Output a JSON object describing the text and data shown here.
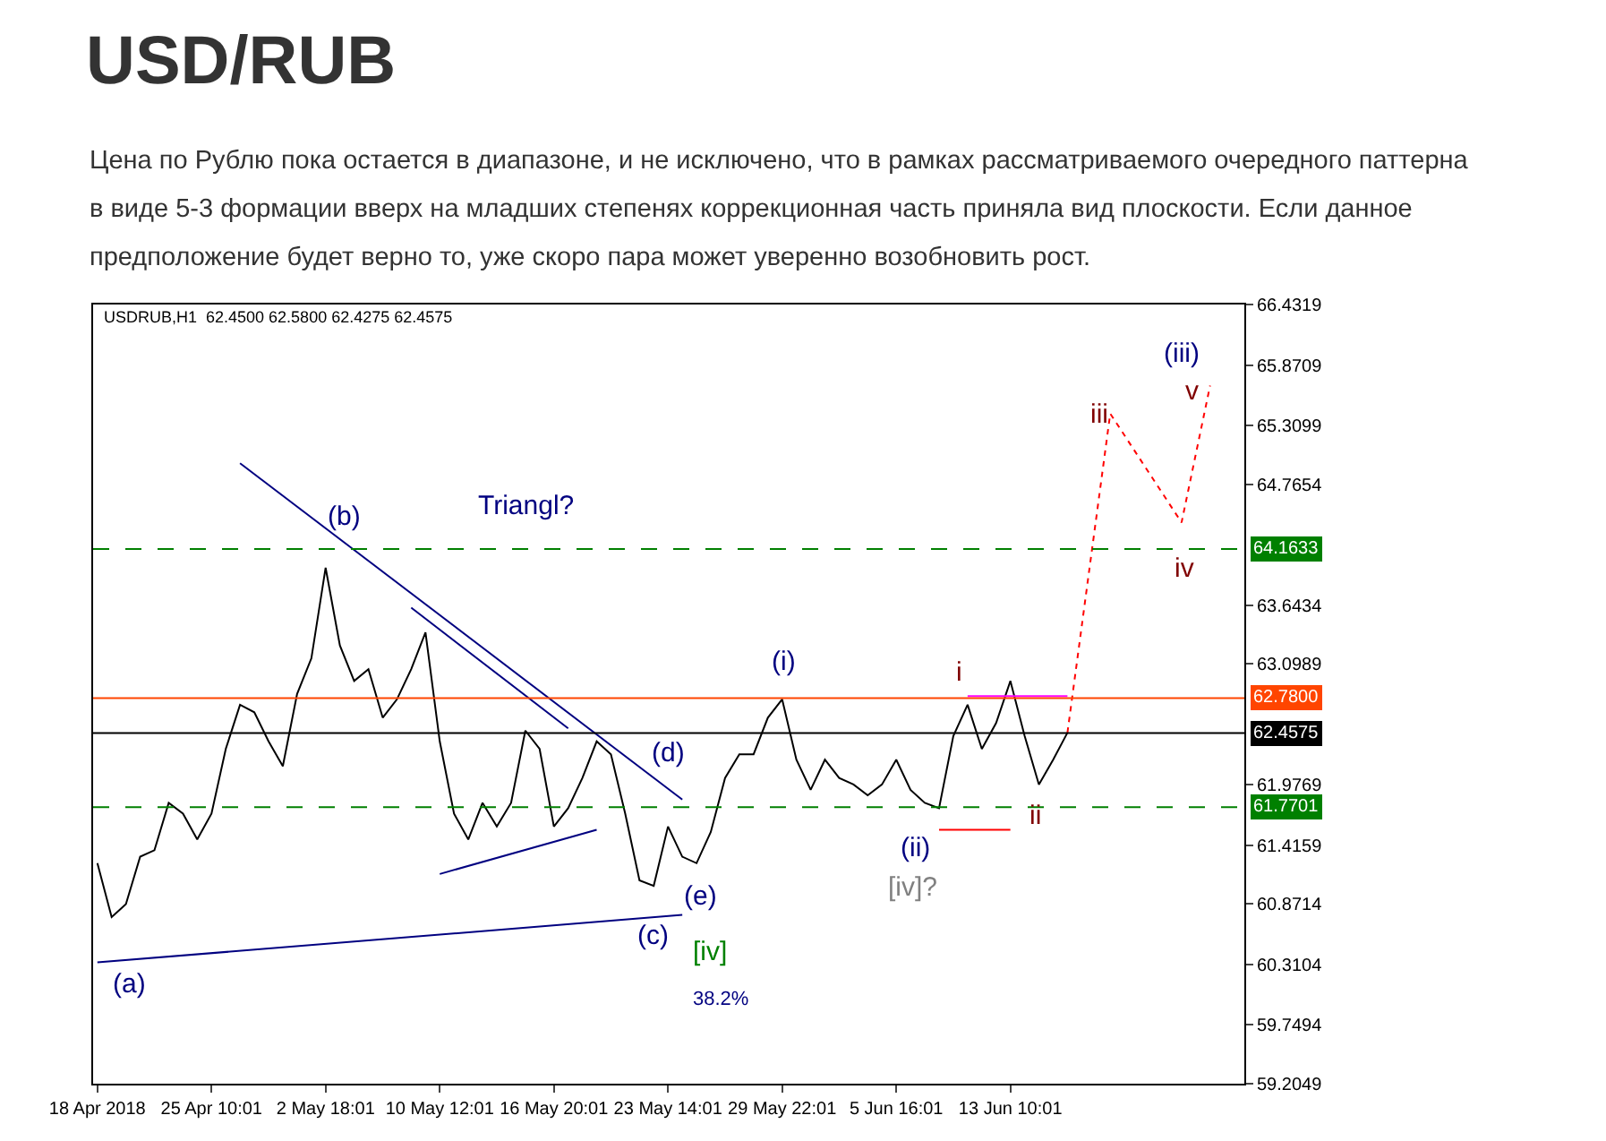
{
  "chart_data": {
    "type": "line",
    "title": "USD/RUB",
    "subtitle": "Цена по Рублю пока остается в диапазоне, и не исключено, что в рамках рассматриваемого очередного паттерна\nв виде 5-3 формации вверх на младших степенях коррекционная часть приняла вид плоскости. Если данное\nпредположение будет верно то, уже скоро пара может уверенно возобновить рост.",
    "categories": [
      "18 Apr 2018",
      null,
      null,
      null,
      null,
      null,
      null,
      null,
      "25 Apr 10:01",
      null,
      null,
      null,
      null,
      null,
      null,
      null,
      "2 May 18:01",
      null,
      null,
      null,
      null,
      null,
      null,
      null,
      "10 May 12:01",
      null,
      null,
      null,
      null,
      null,
      null,
      null,
      "16 May 20:01",
      null,
      null,
      null,
      null,
      null,
      null,
      null,
      "23 May 14:01",
      null,
      null,
      null,
      null,
      null,
      null,
      null,
      "29 May 22:01",
      null,
      null,
      null,
      null,
      null,
      null,
      null,
      "5 Jun 16:01",
      null,
      null,
      null,
      null,
      null,
      null,
      null,
      "13 Jun 10:01",
      null,
      null,
      null,
      null,
      null,
      null,
      null,
      null,
      null,
      null,
      null,
      null,
      null,
      null,
      null,
      null
    ],
    "series": [
      {
        "color": "#000000",
        "values": [
          61.25,
          60.75,
          60.87,
          61.31,
          61.37,
          61.81,
          61.71,
          61.47,
          61.71,
          62.31,
          62.72,
          62.65,
          62.38,
          62.15,
          62.82,
          63.15,
          63.99,
          63.27,
          62.94,
          63.05,
          62.6,
          62.77,
          63.05,
          63.39,
          62.38,
          61.71,
          61.47,
          61.81,
          61.59,
          61.81,
          62.48,
          62.31,
          61.59,
          61.76,
          62.04,
          62.38,
          62.26,
          61.71,
          61.09,
          61.04,
          61.59,
          61.31,
          61.25,
          61.54,
          62.04,
          62.26,
          62.26,
          62.6,
          62.77,
          62.21,
          61.93,
          62.21,
          62.04,
          61.98,
          61.88,
          61.98,
          62.21,
          61.93,
          61.81,
          61.76,
          62.43,
          62.72,
          62.31,
          62.55,
          62.94,
          62.43,
          61.98,
          62.21,
          62.46,
          null,
          null,
          null,
          null,
          null,
          null,
          null,
          null,
          null,
          null,
          null,
          null
        ]
      },
      {
        "color": "#ff0000",
        "line_style": "dotted",
        "values": [
          null,
          null,
          null,
          null,
          null,
          null,
          null,
          null,
          null,
          null,
          null,
          null,
          null,
          null,
          null,
          null,
          null,
          null,
          null,
          null,
          null,
          null,
          null,
          null,
          null,
          null,
          null,
          null,
          null,
          null,
          null,
          null,
          null,
          null,
          null,
          null,
          null,
          null,
          null,
          null,
          null,
          null,
          null,
          null,
          null,
          null,
          null,
          null,
          null,
          null,
          null,
          null,
          null,
          null,
          null,
          null,
          null,
          null,
          null,
          null,
          null,
          null,
          null,
          null,
          null,
          null,
          null,
          null,
          62.46,
          null,
          null,
          65.42,
          null,
          null,
          null,
          null,
          64.41,
          null,
          65.68,
          null,
          null
        ]
      },
      {
        "color": "#000080",
        "values": [
          null,
          null,
          null,
          null,
          null,
          null,
          null,
          null,
          null,
          null,
          64.96,
          null,
          null,
          null,
          null,
          null,
          null,
          null,
          null,
          null,
          null,
          null,
          null,
          null,
          null,
          null,
          null,
          null,
          null,
          null,
          null,
          null,
          null,
          null,
          null,
          null,
          null,
          null,
          null,
          null,
          null,
          61.84,
          null,
          null,
          null,
          null,
          null,
          null,
          null,
          null,
          null,
          null,
          null,
          null,
          null,
          null,
          null,
          null,
          null,
          null,
          null,
          null,
          null,
          null,
          null,
          null,
          null,
          null,
          null,
          null,
          null,
          null,
          null,
          null,
          null,
          null,
          null,
          null,
          null,
          null,
          null
        ]
      },
      {
        "color": "#000080",
        "values": [
          null,
          null,
          null,
          null,
          null,
          null,
          null,
          null,
          null,
          null,
          null,
          null,
          null,
          null,
          null,
          null,
          null,
          null,
          null,
          null,
          null,
          null,
          63.62,
          null,
          null,
          null,
          null,
          null,
          null,
          null,
          null,
          null,
          null,
          62.5,
          null,
          null,
          null,
          null,
          null,
          null,
          null,
          null,
          null,
          null,
          null,
          null,
          null,
          null,
          null,
          null,
          null,
          null,
          null,
          null,
          null,
          null,
          null,
          null,
          null,
          null,
          null,
          null,
          null,
          null,
          null,
          null,
          null,
          null,
          null,
          null,
          null,
          null,
          null,
          null,
          null,
          null,
          null,
          null,
          null,
          null,
          null
        ]
      },
      {
        "color": "#000080",
        "values": [
          null,
          null,
          null,
          null,
          null,
          null,
          null,
          null,
          null,
          null,
          null,
          null,
          null,
          null,
          null,
          null,
          null,
          null,
          null,
          null,
          null,
          null,
          null,
          null,
          61.15,
          null,
          null,
          null,
          null,
          null,
          null,
          null,
          null,
          null,
          null,
          61.56,
          null,
          null,
          null,
          null,
          null,
          null,
          null,
          null,
          null,
          null,
          null,
          null,
          null,
          null,
          null,
          null,
          null,
          null,
          null,
          null,
          null,
          null,
          null,
          null,
          null,
          null,
          null,
          null,
          null,
          null,
          null,
          null,
          null,
          null,
          null,
          null,
          null,
          null,
          null,
          null,
          null,
          null,
          null,
          null,
          null
        ]
      },
      {
        "color": "#000080",
        "values": [
          60.33,
          null,
          null,
          null,
          null,
          null,
          null,
          null,
          null,
          null,
          null,
          null,
          null,
          null,
          null,
          null,
          null,
          null,
          null,
          null,
          null,
          null,
          null,
          null,
          null,
          null,
          null,
          null,
          null,
          null,
          null,
          null,
          null,
          null,
          null,
          null,
          null,
          null,
          null,
          null,
          null,
          60.77,
          null,
          null,
          null,
          null,
          null,
          null,
          null,
          null,
          null,
          null,
          null,
          null,
          null,
          null,
          null,
          null,
          null,
          null,
          null,
          null,
          null,
          null,
          null,
          null,
          null,
          null,
          null,
          null,
          null,
          null,
          null,
          null,
          null,
          null,
          null,
          null,
          null,
          null,
          null
        ]
      },
      {
        "color": "#ff0000",
        "values": [
          null,
          null,
          null,
          null,
          null,
          null,
          null,
          null,
          null,
          null,
          null,
          null,
          null,
          null,
          null,
          null,
          null,
          null,
          null,
          null,
          null,
          null,
          null,
          null,
          null,
          null,
          null,
          null,
          null,
          null,
          null,
          null,
          null,
          null,
          null,
          null,
          null,
          null,
          null,
          null,
          null,
          null,
          null,
          null,
          null,
          null,
          null,
          null,
          null,
          null,
          null,
          null,
          null,
          null,
          null,
          null,
          null,
          null,
          null,
          61.56,
          null,
          null,
          null,
          null,
          61.56,
          null,
          null,
          null,
          null,
          null,
          null,
          null,
          null,
          null,
          null,
          null,
          null,
          null,
          null,
          null,
          null
        ]
      },
      {
        "color": "#ff00ff",
        "values": [
          null,
          null,
          null,
          null,
          null,
          null,
          null,
          null,
          null,
          null,
          null,
          null,
          null,
          null,
          null,
          null,
          null,
          null,
          null,
          null,
          null,
          null,
          null,
          null,
          null,
          null,
          null,
          null,
          null,
          null,
          null,
          null,
          null,
          null,
          null,
          null,
          null,
          null,
          null,
          null,
          null,
          null,
          null,
          null,
          null,
          null,
          null,
          null,
          null,
          null,
          null,
          null,
          null,
          null,
          null,
          null,
          null,
          null,
          null,
          null,
          null,
          62.8,
          null,
          null,
          null,
          null,
          null,
          null,
          62.8,
          null,
          null,
          null,
          null,
          null,
          null,
          null,
          null,
          null,
          null,
          null,
          null
        ]
      }
    ],
    "ylim": [
      59.2049,
      66.4319
    ],
    "yticks": [
      66.4319,
      65.8709,
      65.3099,
      64.7654,
      63.6434,
      63.0989,
      61.9769,
      61.4159,
      60.8714,
      60.3104,
      59.7494,
      59.2049
    ],
    "ref_lines": [
      {
        "axis": "y",
        "value": 64.1633,
        "label": "64.1633",
        "color": "#008000",
        "line_style": "dashed"
      },
      {
        "axis": "y",
        "value": 61.7701,
        "label": "61.7701",
        "color": "#008000",
        "line_style": "dashed"
      },
      {
        "axis": "y",
        "value": 62.78,
        "label": "62.7800",
        "color": "#ff4500",
        "line_style": "solid"
      },
      {
        "axis": "y",
        "value": 62.4575,
        "label": "62.4575",
        "color": "#000000",
        "line_style": "solid"
      }
    ],
    "annotations": [
      "USDRUB,H1  62.4500 62.5800 62.4275 62.4575",
      "(a)",
      "(b)",
      "Triangl?",
      "(c)",
      "(d)",
      "(e)",
      "[iv]",
      "38.2%",
      "(i)",
      "(ii)",
      "[iv]?",
      "i",
      "ii",
      "iii",
      "iv",
      "v",
      "(iii)"
    ],
    "marker": "none"
  }
}
